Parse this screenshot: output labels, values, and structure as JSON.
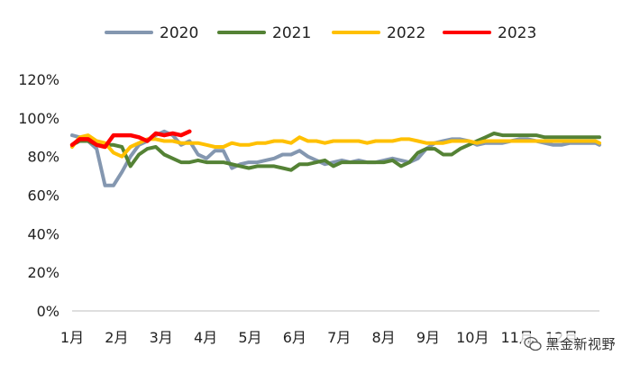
{
  "chart_data": {
    "type": "line",
    "title": "",
    "xlabel": "",
    "ylabel": "",
    "ylim": [
      0,
      120
    ],
    "y_ticks": [
      "0%",
      "20%",
      "40%",
      "60%",
      "80%",
      "100%",
      "120%"
    ],
    "x_ticks": [
      "1月",
      "2月",
      "3月",
      "4月",
      "5月",
      "6月",
      "7月",
      "8月",
      "9月",
      "10月",
      "11月",
      "12月"
    ],
    "xlim": [
      1,
      12.85
    ],
    "grid": false,
    "legend_position": "top",
    "series": [
      {
        "name": "2020",
        "color": "#8497b0",
        "x": [
          1.0,
          1.17,
          1.36,
          1.55,
          1.74,
          1.93,
          2.12,
          2.31,
          2.5,
          2.69,
          2.88,
          3.07,
          3.26,
          3.45,
          3.64,
          3.83,
          4.02,
          4.21,
          4.4,
          4.59,
          4.78,
          4.97,
          5.16,
          5.35,
          5.54,
          5.73,
          5.92,
          6.11,
          6.3,
          6.49,
          6.68,
          6.87,
          7.06,
          7.25,
          7.44,
          7.63,
          7.82,
          8.01,
          8.2,
          8.39,
          8.58,
          8.77,
          8.96,
          9.15,
          9.34,
          9.53,
          9.72,
          9.91,
          10.1,
          10.29,
          10.48,
          10.67,
          10.86,
          11.05,
          11.24,
          11.43,
          11.62,
          11.81,
          12.0,
          12.19,
          12.38,
          12.57,
          12.76,
          12.85
        ],
        "values": [
          91,
          90,
          88,
          84,
          65,
          65,
          72,
          80,
          86,
          88,
          91,
          93,
          91,
          86,
          88,
          81,
          79,
          83,
          83,
          74,
          76,
          77,
          77,
          78,
          79,
          81,
          81,
          83,
          80,
          78,
          76,
          77,
          78,
          77,
          78,
          77,
          77,
          78,
          79,
          78,
          77,
          79,
          84,
          87,
          88,
          89,
          89,
          88,
          86,
          87,
          87,
          87,
          88,
          89,
          89,
          88,
          87,
          86,
          86,
          87,
          87,
          87,
          87,
          86
        ]
      },
      {
        "name": "2021",
        "color": "#548235",
        "x": [
          1.0,
          1.17,
          1.36,
          1.55,
          1.74,
          1.93,
          2.12,
          2.31,
          2.5,
          2.69,
          2.88,
          3.07,
          3.26,
          3.45,
          3.64,
          3.83,
          4.02,
          4.21,
          4.4,
          4.59,
          4.78,
          4.97,
          5.16,
          5.35,
          5.54,
          5.73,
          5.92,
          6.11,
          6.3,
          6.49,
          6.68,
          6.87,
          7.06,
          7.25,
          7.44,
          7.63,
          7.82,
          8.01,
          8.2,
          8.39,
          8.58,
          8.77,
          8.96,
          9.15,
          9.34,
          9.53,
          9.72,
          9.91,
          10.1,
          10.29,
          10.48,
          10.67,
          10.86,
          11.05,
          11.24,
          11.43,
          11.62,
          11.81,
          12.0,
          12.19,
          12.38,
          12.57,
          12.76,
          12.85
        ],
        "values": [
          86,
          88,
          88,
          86,
          86,
          86,
          85,
          75,
          81,
          84,
          85,
          81,
          79,
          77,
          77,
          78,
          77,
          77,
          77,
          76,
          75,
          74,
          75,
          75,
          75,
          74,
          73,
          76,
          76,
          77,
          78,
          75,
          77,
          77,
          77,
          77,
          77,
          77,
          78,
          75,
          77,
          82,
          84,
          84,
          81,
          81,
          84,
          86,
          88,
          90,
          92,
          91,
          91,
          91,
          91,
          91,
          90,
          90,
          90,
          90,
          90,
          90,
          90,
          90
        ]
      },
      {
        "name": "2022",
        "color": "#ffc000",
        "x": [
          1.0,
          1.17,
          1.36,
          1.55,
          1.74,
          1.93,
          2.12,
          2.31,
          2.5,
          2.69,
          2.88,
          3.07,
          3.26,
          3.45,
          3.64,
          3.83,
          4.02,
          4.21,
          4.4,
          4.59,
          4.78,
          4.97,
          5.16,
          5.35,
          5.54,
          5.73,
          5.92,
          6.11,
          6.3,
          6.49,
          6.68,
          6.87,
          7.06,
          7.25,
          7.44,
          7.63,
          7.82,
          8.01,
          8.2,
          8.39,
          8.58,
          8.77,
          8.96,
          9.15,
          9.34,
          9.53,
          9.72,
          9.91,
          10.1,
          10.29,
          10.48,
          10.67,
          10.86,
          11.05,
          11.24,
          11.43,
          11.62,
          11.81,
          12.0,
          12.19,
          12.38,
          12.57,
          12.76,
          12.85
        ],
        "values": [
          85,
          90,
          91,
          88,
          87,
          82,
          80,
          85,
          87,
          89,
          89,
          88,
          88,
          87,
          87,
          87,
          86,
          85,
          85,
          87,
          86,
          86,
          87,
          87,
          88,
          88,
          87,
          90,
          88,
          88,
          87,
          88,
          88,
          88,
          88,
          87,
          88,
          88,
          88,
          89,
          89,
          88,
          87,
          87,
          87,
          88,
          88,
          88,
          87,
          88,
          88,
          88,
          88,
          88,
          88,
          88,
          88,
          88,
          88,
          88,
          88,
          88,
          88,
          87
        ]
      },
      {
        "name": "2023",
        "color": "#ff0000",
        "x": [
          1.0,
          1.17,
          1.36,
          1.55,
          1.74,
          1.93,
          2.12,
          2.31,
          2.5,
          2.69,
          2.88,
          3.07,
          3.26,
          3.45,
          3.64
        ],
        "values": [
          86,
          89,
          89,
          86,
          85,
          91,
          91,
          91,
          90,
          88,
          92,
          91,
          92,
          91,
          93
        ]
      }
    ]
  },
  "watermark": {
    "icon": "wechat-icon",
    "text": "黑金新视野"
  }
}
